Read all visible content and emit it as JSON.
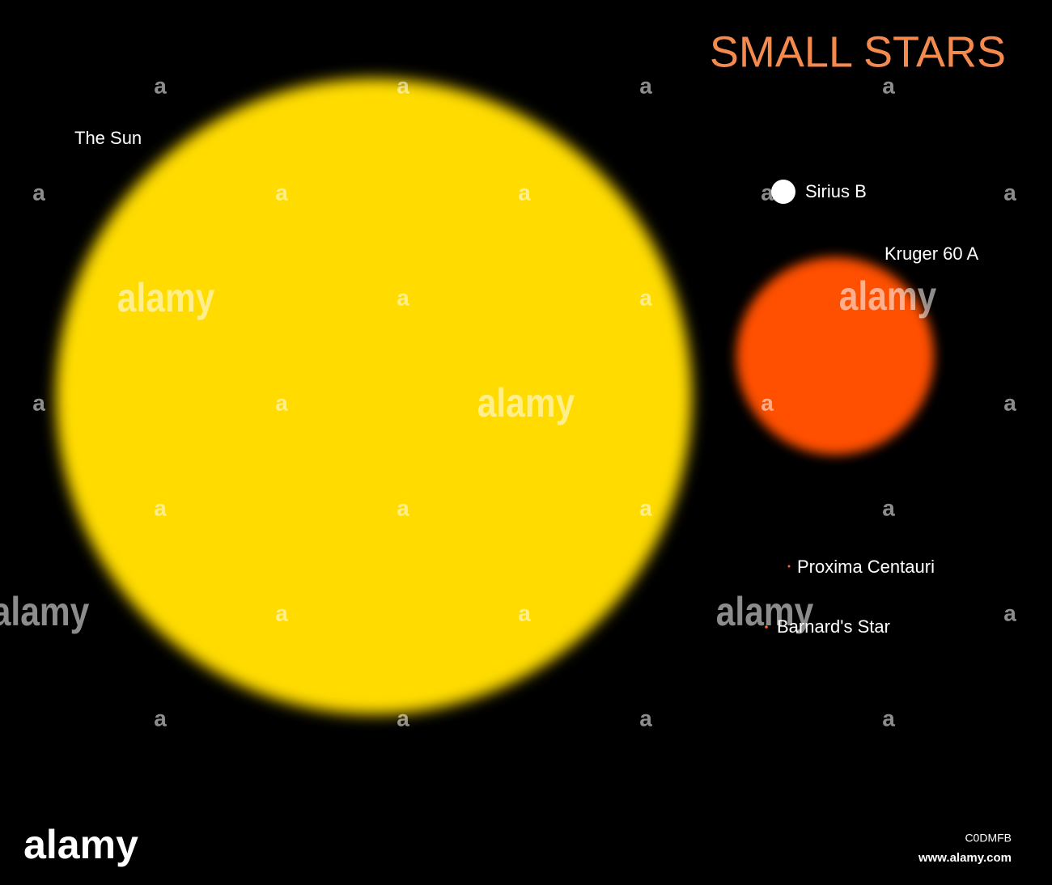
{
  "title": "SMALL STARS",
  "stars": [
    {
      "label": "The Sun"
    },
    {
      "label": "Sirius B"
    },
    {
      "label": "Kruger 60 A"
    },
    {
      "label": "Proxima Centauri"
    },
    {
      "label": "Barnard's Star"
    }
  ],
  "watermark": {
    "mark": "a",
    "word": "alamy"
  },
  "footer": {
    "logo": "alamy",
    "image_id": "C0DMFB",
    "url": "www.alamy.com"
  }
}
